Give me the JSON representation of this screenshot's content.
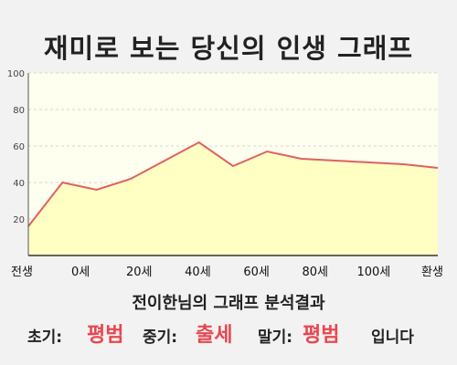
{
  "title": "재미로 보는 당신의 인생 그래프",
  "chart_data": {
    "type": "area",
    "title": "재미로 보는 당신의 인생 그래프",
    "x": [
      0,
      10,
      20,
      30,
      40,
      50,
      60,
      70,
      80,
      90,
      100,
      110,
      120
    ],
    "values": [
      16,
      40,
      36,
      42,
      52,
      62,
      49,
      57,
      53,
      52,
      51,
      50,
      48
    ],
    "xtick_labels": [
      "전생",
      "0세",
      "20세",
      "40세",
      "60세",
      "80세",
      "100세",
      "환생"
    ],
    "xlim": [
      0,
      120
    ],
    "yticks": [
      20,
      40,
      60,
      80,
      100
    ],
    "ylim": [
      0,
      100
    ],
    "grid": true,
    "line_color": "#e06060",
    "fill_color": "#ffffc4",
    "plot_background": "#fffff0"
  },
  "analysis": {
    "heading": "전이한님의 그래프 분석결과",
    "early_label": "초기:",
    "early_value": "평범",
    "middle_label": "중기:",
    "middle_value": "출세",
    "late_label": "말기:",
    "late_value": "평범",
    "suffix": "입니다"
  }
}
